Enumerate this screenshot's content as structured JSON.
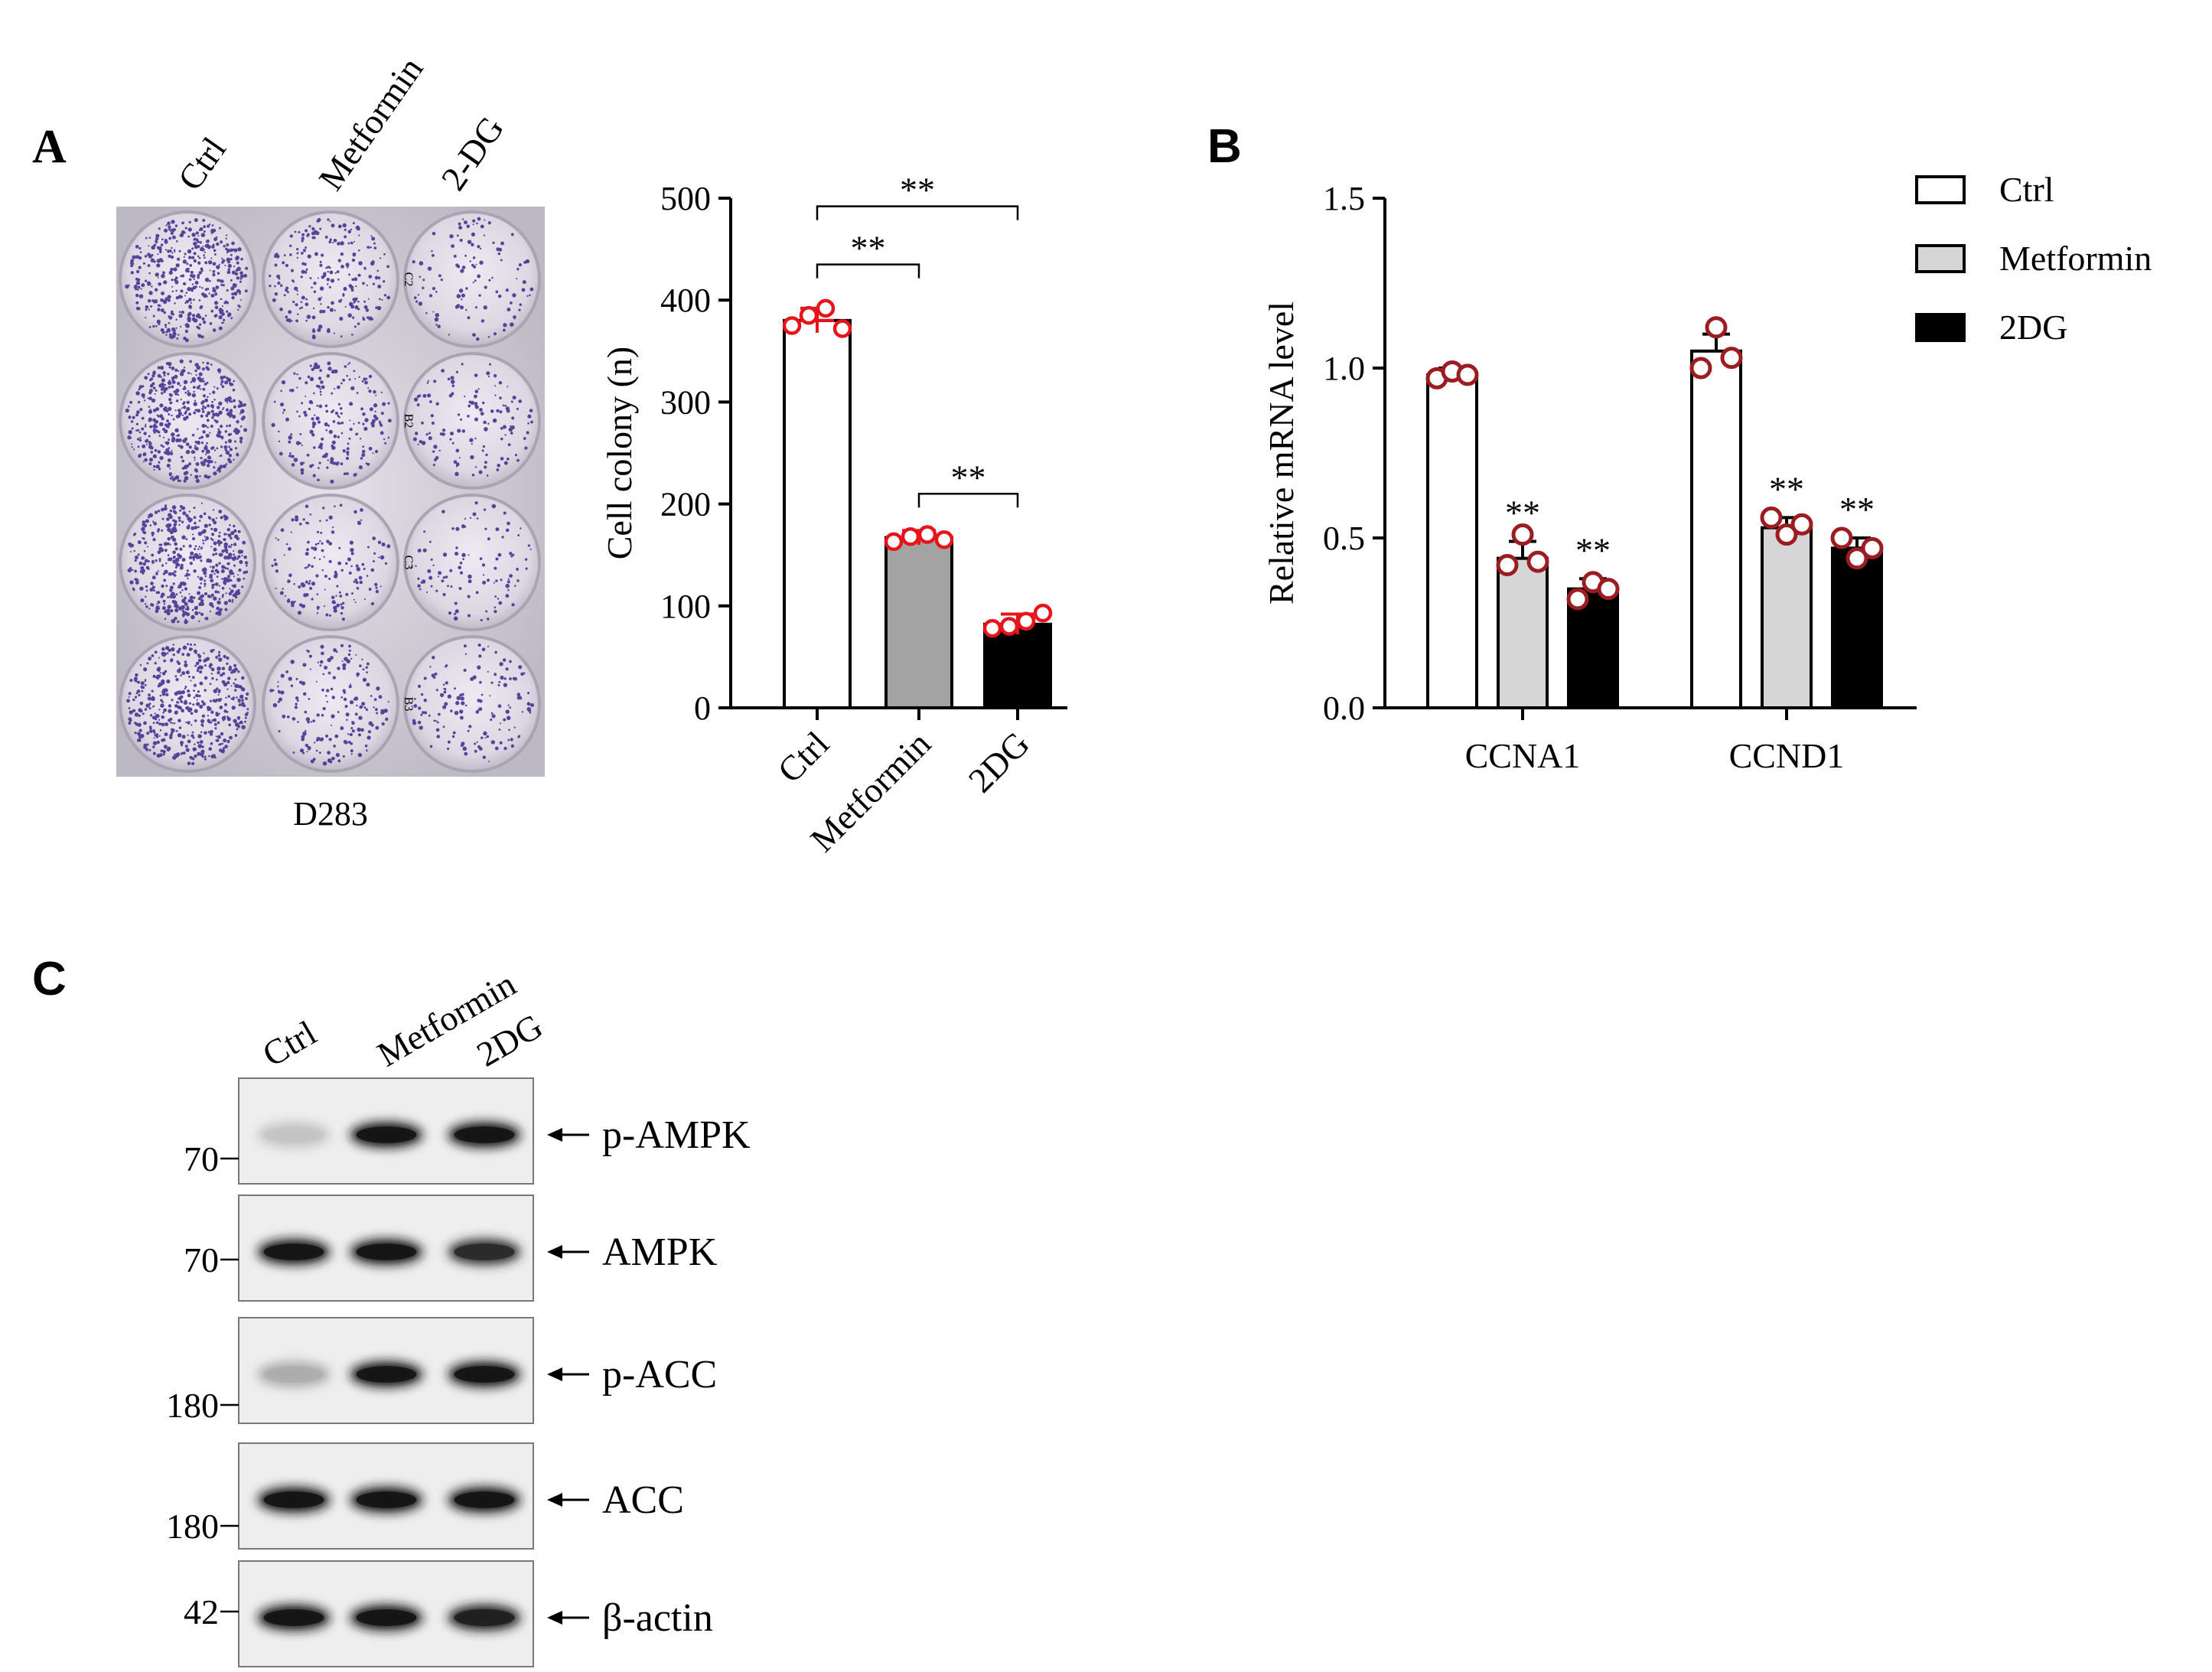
{
  "panels": {
    "A": {
      "letter": "A",
      "plate_columns": [
        "Ctrl",
        "Metformin",
        "2-DG"
      ],
      "plate_caption": "D283",
      "dish_density": [
        [
          0.85,
          0.45,
          0.22
        ],
        [
          0.95,
          0.4,
          0.25
        ],
        [
          1.0,
          0.3,
          0.2
        ],
        [
          0.9,
          0.35,
          0.28
        ]
      ],
      "plate_well_marks": [
        "C2",
        "B2",
        "C3",
        "B3"
      ],
      "chart_data": {
        "type": "bar",
        "categories": [
          "Ctrl",
          "Metformin",
          "2DG"
        ],
        "values": [
          380,
          167,
          82
        ],
        "errors": [
          12,
          7,
          10
        ],
        "points": [
          [
            375,
            385,
            392,
            372
          ],
          [
            163,
            168,
            170,
            165
          ],
          [
            78,
            80,
            85,
            93
          ]
        ],
        "fills": [
          "#ffffff",
          "#a3a3a3",
          "#000000"
        ],
        "point_color": "#e8141b",
        "ylabel": "Cell colony (n)",
        "ylim": [
          0,
          500
        ],
        "yticks": [
          0,
          100,
          200,
          300,
          400,
          500
        ],
        "significance": [
          {
            "from": 0,
            "to": 2,
            "label": "**",
            "y": 492
          },
          {
            "from": 0,
            "to": 1,
            "label": "**",
            "y": 435
          },
          {
            "from": 1,
            "to": 2,
            "label": "**",
            "y": 210
          }
        ]
      }
    },
    "B": {
      "letter": "B",
      "chart_data": {
        "type": "bar",
        "categories": [
          "CCNA1",
          "CCND1"
        ],
        "series": [
          {
            "name": "Ctrl",
            "fill": "#ffffff",
            "values": [
              0.98,
              1.05
            ],
            "errors": [
              0.02,
              0.05
            ],
            "points": [
              [
                0.97,
                0.99,
                0.98
              ],
              [
                1.0,
                1.12,
                1.03
              ]
            ]
          },
          {
            "name": "Metformin",
            "fill": "#d6d6d6",
            "values": [
              0.44,
              0.53
            ],
            "errors": [
              0.05,
              0.03
            ],
            "points": [
              [
                0.42,
                0.51,
                0.43
              ],
              [
                0.56,
                0.51,
                0.54
              ]
            ]
          },
          {
            "name": "2DG",
            "fill": "#000000",
            "values": [
              0.35,
              0.47
            ],
            "errors": [
              0.03,
              0.03
            ],
            "points": [
              [
                0.32,
                0.37,
                0.35
              ],
              [
                0.5,
                0.44,
                0.47
              ]
            ]
          }
        ],
        "point_color": "#9b1d22",
        "significance_labels": [
          [
            "",
            "**",
            "**"
          ],
          [
            "",
            "**",
            "**"
          ]
        ],
        "ylabel": "Relative mRNA level",
        "ylim": [
          0,
          1.5
        ],
        "yticks": [
          "0.0",
          "0.5",
          "1.0",
          "1.5"
        ],
        "legend_position": "top-right"
      }
    },
    "C": {
      "letter": "C",
      "lanes": [
        "Ctrl",
        "Metformin",
        "2DG"
      ],
      "blots": [
        {
          "label": "p-AMPK",
          "marker": "70",
          "intensity": [
            0.18,
            1.0,
            1.0
          ]
        },
        {
          "label": "AMPK",
          "marker": "70",
          "intensity": [
            1.0,
            1.0,
            0.9
          ]
        },
        {
          "label": "p-ACC",
          "marker": "180",
          "intensity": [
            0.3,
            1.0,
            1.0
          ]
        },
        {
          "label": "ACC",
          "marker": "180",
          "intensity": [
            1.0,
            1.0,
            1.0
          ]
        },
        {
          "label": "β-actin",
          "marker": "42",
          "intensity": [
            1.0,
            1.0,
            0.95
          ]
        }
      ]
    }
  }
}
